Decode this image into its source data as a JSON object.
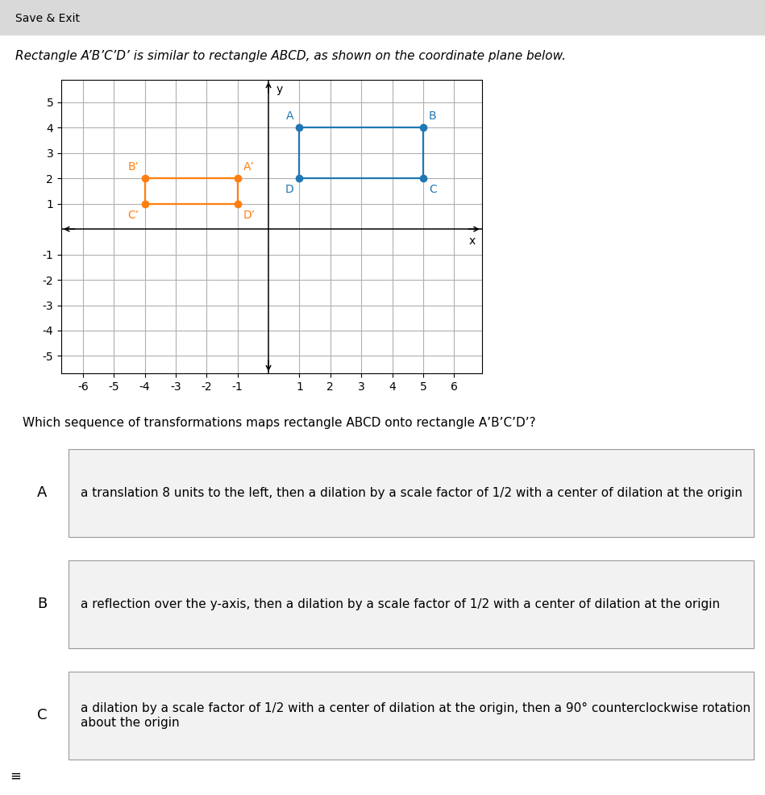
{
  "chart_data": {
    "type": "polygon",
    "header": "Save & Exit",
    "title": "Rectangle A’B’C’D’ is similar to rectangle ABCD, as shown on the coordinate plane below.",
    "question": "Which sequence of transformations maps rectangle ABCD onto rectangle A’B’C’D’?",
    "options": [
      {
        "label": "A",
        "text": "a translation 8 units to the left, then a dilation by a scale factor of 1/2 with a center of dilation at the origin"
      },
      {
        "label": "B",
        "text": "a reflection over the y-axis, then a dilation by a scale factor of 1/2 with a center of dilation at the origin"
      },
      {
        "label": "C",
        "text": "a dilation by a scale factor of 1/2 with a center of dilation at the origin, then a 90° counterclockwise rotation about the origin"
      }
    ],
    "annotations": [
      "≡"
    ],
    "xlabel": "x",
    "ylabel": "y",
    "xlim": [
      -6.7,
      6.9
    ],
    "ylim": [
      -5.7,
      5.9
    ],
    "xticks": [
      -6,
      -5,
      -4,
      -3,
      -2,
      -1,
      1,
      2,
      3,
      4,
      5,
      6
    ],
    "yticks": [
      -5,
      -4,
      -3,
      -2,
      -1,
      1,
      2,
      3,
      4,
      5
    ],
    "grid": true,
    "series": [
      {
        "x": [
          1,
          5,
          5,
          1
        ],
        "values": [
          4,
          4,
          2,
          2
        ],
        "point_labels": [
          "A",
          "B",
          "C",
          "D"
        ],
        "marker": "o"
      },
      {
        "x": [
          -1,
          -4,
          -4,
          -1
        ],
        "values": [
          2,
          2,
          1,
          1
        ],
        "point_labels": [
          "A’",
          "B’",
          "C’",
          "D’"
        ],
        "marker": "o"
      }
    ]
  }
}
